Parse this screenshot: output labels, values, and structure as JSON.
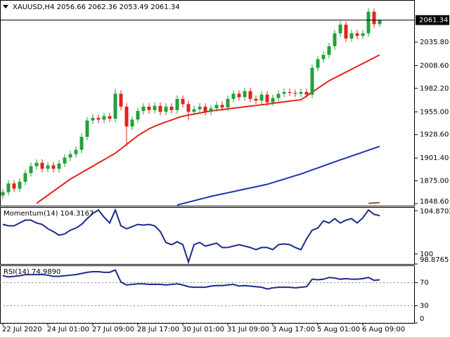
{
  "chart_data": [
    {
      "type": "candlestick",
      "title": "XAUUSD,H4 2056.66 2062.36 2053.49 2061.34",
      "categories": [
        "22 Jul 2020",
        null,
        null,
        null,
        null,
        null,
        null,
        null,
        "24 Jul 01:00",
        null,
        null,
        null,
        null,
        null,
        null,
        null,
        "27 Jul 09:00",
        null,
        null,
        null,
        null,
        null,
        null,
        null,
        "28 Jul 17:00",
        null,
        null,
        null,
        null,
        null,
        null,
        null,
        "30 Jul 01:00",
        null,
        null,
        null,
        null,
        null,
        null,
        null,
        "31 Jul 09:00",
        null,
        null,
        null,
        null,
        null,
        null,
        null,
        "3 Aug 17:00",
        null,
        null,
        null,
        null,
        null,
        null,
        null,
        "5 Aug 01:00",
        null,
        null,
        null,
        null,
        null,
        null,
        null,
        "6 Aug 09:00",
        null,
        null,
        null
      ],
      "open": [
        1858,
        1862,
        1872,
        1866,
        1874,
        1884,
        1892,
        1896,
        1889,
        1893,
        1889,
        1895,
        1902,
        1906,
        1911,
        1926,
        1945,
        1948,
        1946,
        1950,
        1947,
        1976,
        1961,
        1938,
        1946,
        1956,
        1961,
        1957,
        1962,
        1955,
        1961,
        1957,
        1970,
        1964,
        1955,
        1958,
        1961,
        1955,
        1959,
        1963,
        1960,
        1970,
        1976,
        1972,
        1979,
        1970,
        1968,
        1975,
        1966,
        1971,
        1976,
        1978,
        1977,
        1976,
        1978,
        1975,
        2006,
        2016,
        2021,
        2031,
        2046,
        2056,
        2040,
        2046,
        2043,
        2046,
        2071,
        2056.66
      ],
      "high": [
        1866,
        1876,
        1876,
        1878,
        1888,
        1896,
        1900,
        1900,
        1897,
        1897,
        1899,
        1906,
        1910,
        1915,
        1930,
        1949,
        1952,
        1952,
        1954,
        1954,
        1982,
        1980,
        1965,
        1950,
        1960,
        1965,
        1965,
        1966,
        1966,
        1965,
        1965,
        1974,
        1974,
        1968,
        1962,
        1965,
        1965,
        1963,
        1967,
        1967,
        1974,
        1980,
        1980,
        1983,
        1983,
        1974,
        1979,
        1979,
        1975,
        1980,
        1982,
        1982,
        1981,
        1982,
        1982,
        2010,
        2020,
        2025,
        2035,
        2050,
        2060,
        2060,
        2050,
        2050,
        2050,
        2075,
        2075,
        2062.36
      ],
      "low": [
        1854,
        1858,
        1862,
        1862,
        1870,
        1880,
        1888,
        1885,
        1885,
        1885,
        1885,
        1891,
        1898,
        1902,
        1907,
        1922,
        1941,
        1942,
        1942,
        1943,
        1943,
        1957,
        1915,
        1934,
        1942,
        1952,
        1953,
        1953,
        1951,
        1951,
        1953,
        1953,
        1960,
        1945,
        1951,
        1954,
        1951,
        1951,
        1955,
        1956,
        1956,
        1966,
        1968,
        1968,
        1966,
        1964,
        1964,
        1962,
        1962,
        1967,
        1972,
        1973,
        1972,
        1972,
        1971,
        1971,
        2002,
        2012,
        2017,
        2027,
        2042,
        2036,
        2036,
        2039,
        2039,
        2042,
        2052,
        2053.49
      ],
      "close": [
        1862,
        1872,
        1866,
        1874,
        1884,
        1892,
        1896,
        1889,
        1893,
        1889,
        1895,
        1902,
        1906,
        1911,
        1926,
        1945,
        1948,
        1946,
        1950,
        1947,
        1976,
        1961,
        1938,
        1946,
        1956,
        1961,
        1957,
        1962,
        1955,
        1961,
        1957,
        1970,
        1964,
        1955,
        1958,
        1961,
        1955,
        1959,
        1963,
        1960,
        1970,
        1976,
        1972,
        1979,
        1970,
        1968,
        1975,
        1966,
        1971,
        1976,
        1978,
        1977,
        1976,
        1978,
        1975,
        2006,
        2016,
        2021,
        2031,
        2046,
        2056,
        2040,
        2046,
        2043,
        2046,
        2071,
        2056.66,
        2061.34
      ],
      "up_color": "#22a23a",
      "down_color": "#e2231a",
      "lines": [
        {
          "color": "#e2231a",
          "values": [
            null,
            null,
            null,
            null,
            null,
            null,
            1849,
            1853.7,
            1858.3,
            1863,
            1867.7,
            1872.3,
            1877,
            1880.8,
            1884.5,
            1888.3,
            1892,
            1895.8,
            1899.5,
            1903.3,
            1907,
            1912.1,
            1917.2,
            1922.3,
            1927.4,
            1931.3,
            1935.3,
            1938.3,
            1940.9,
            1943.3,
            1945.5,
            1948,
            1950,
            1951.2,
            1952.4,
            1953.6,
            1954.8,
            1956,
            1956.8,
            1957.6,
            1958.4,
            1959.2,
            1960,
            1960.8,
            1961.6,
            1962.3,
            1963.2,
            1964,
            1964.9,
            1965.7,
            1966.5,
            1967.4,
            1968.2,
            1969,
            1973.4,
            1977.8,
            1982.2,
            1986.6,
            1991,
            1994.3,
            1997.7,
            2001,
            2004.3,
            2007.7,
            2011,
            2014.3,
            2017.7,
            2021
          ]
        },
        {
          "color": "#1b35b0",
          "values": [
            null,
            null,
            null,
            null,
            null,
            null,
            null,
            null,
            null,
            null,
            null,
            null,
            null,
            null,
            null,
            null,
            null,
            null,
            null,
            null,
            null,
            null,
            null,
            null,
            null,
            null,
            null,
            null,
            null,
            null,
            null,
            1847,
            1848.7,
            1850.3,
            1852,
            1853.7,
            1855.3,
            1857,
            1858.4,
            1859.8,
            1861.2,
            1862.6,
            1864,
            1865.4,
            1866.8,
            1868.2,
            1869.6,
            1871,
            1873,
            1875,
            1877,
            1879,
            1881,
            1883,
            1885.3,
            1887.7,
            1890,
            1892.3,
            1894.7,
            1897,
            1899.3,
            1901.5,
            1903.8,
            1906,
            1908.3,
            1910.5,
            1912.8,
            1915
          ]
        },
        {
          "color": "#a0522d",
          "values": [
            null,
            null,
            null,
            null,
            null,
            null,
            null,
            null,
            null,
            null,
            null,
            null,
            null,
            null,
            null,
            null,
            null,
            null,
            null,
            null,
            null,
            null,
            null,
            null,
            null,
            null,
            null,
            null,
            null,
            null,
            null,
            null,
            null,
            null,
            null,
            null,
            null,
            null,
            null,
            null,
            null,
            null,
            null,
            null,
            null,
            null,
            null,
            null,
            null,
            null,
            null,
            null,
            null,
            null,
            null,
            null,
            null,
            null,
            null,
            null,
            null,
            null,
            null,
            null,
            null,
            1848.9,
            1849.4,
            1849.9
          ]
        }
      ],
      "ylim": [
        1846.2,
        2084.6
      ],
      "yticks": [
        {
          "value": 2035.8,
          "label": "2035.80"
        },
        {
          "value": 2008.6,
          "label": "2008.60"
        },
        {
          "value": 1982.2,
          "label": "1982.20"
        },
        {
          "value": 1955,
          "label": "1955.00"
        },
        {
          "value": 1928.6,
          "label": "1928.60"
        },
        {
          "value": 1901.4,
          "label": "1901.40"
        },
        {
          "value": 1875,
          "label": "1875.00"
        },
        {
          "value": 1848.6,
          "label": "1848.60"
        }
      ]
    },
    {
      "type": "line",
      "title": "Momentum(14) 104.3167",
      "color": "#1c2a8c",
      "values": [
        103.33,
        103.17,
        103.17,
        103.49,
        103.81,
        103.81,
        103.49,
        103.33,
        102.84,
        102.52,
        102.11,
        102.27,
        102.68,
        102.92,
        103.33,
        103.98,
        104.55,
        104.95,
        104.14,
        103.49,
        104.95,
        103.17,
        102.84,
        103.08,
        103.33,
        103.25,
        103.33,
        103.17,
        102.52,
        101.3,
        101.05,
        101.38,
        101.05,
        99.1,
        101.05,
        101.3,
        100.89,
        101.05,
        101.22,
        100.73,
        100.73,
        100.89,
        101.05,
        100.89,
        100.73,
        100.49,
        100.73,
        100.73,
        100.49,
        101.05,
        101.14,
        101.05,
        100.73,
        100.49,
        101.7,
        102.68,
        102.92,
        103.73,
        103.49,
        103.98,
        103.49,
        103.81,
        103.98,
        103.49,
        104.06,
        104.95,
        104.46,
        104.3167
      ],
      "ylim": [
        98.8765,
        105.276
      ],
      "yticks": [
        104.8702,
        100,
        98.8765
      ]
    },
    {
      "type": "line",
      "title": "RSI(14) 74.9890",
      "color": "#1c2a8c",
      "values": [
        82,
        80,
        81,
        82,
        84,
        84,
        84,
        84,
        83,
        81,
        81,
        82,
        83,
        84,
        86,
        88,
        89,
        89,
        88,
        88,
        92,
        71,
        66,
        67,
        68,
        68,
        67,
        67,
        67,
        66,
        67,
        68,
        66,
        63,
        62,
        62,
        62,
        64,
        65,
        65,
        66,
        67,
        64,
        65,
        64,
        63,
        62,
        59,
        61,
        62,
        62,
        62,
        61,
        62,
        63,
        76,
        75,
        76,
        79,
        78,
        76,
        77,
        76,
        76,
        77,
        79,
        74,
        74.989
      ],
      "ylim": [
        0,
        100
      ],
      "yticks": [
        70,
        30,
        0
      ],
      "grid": true
    }
  ]
}
